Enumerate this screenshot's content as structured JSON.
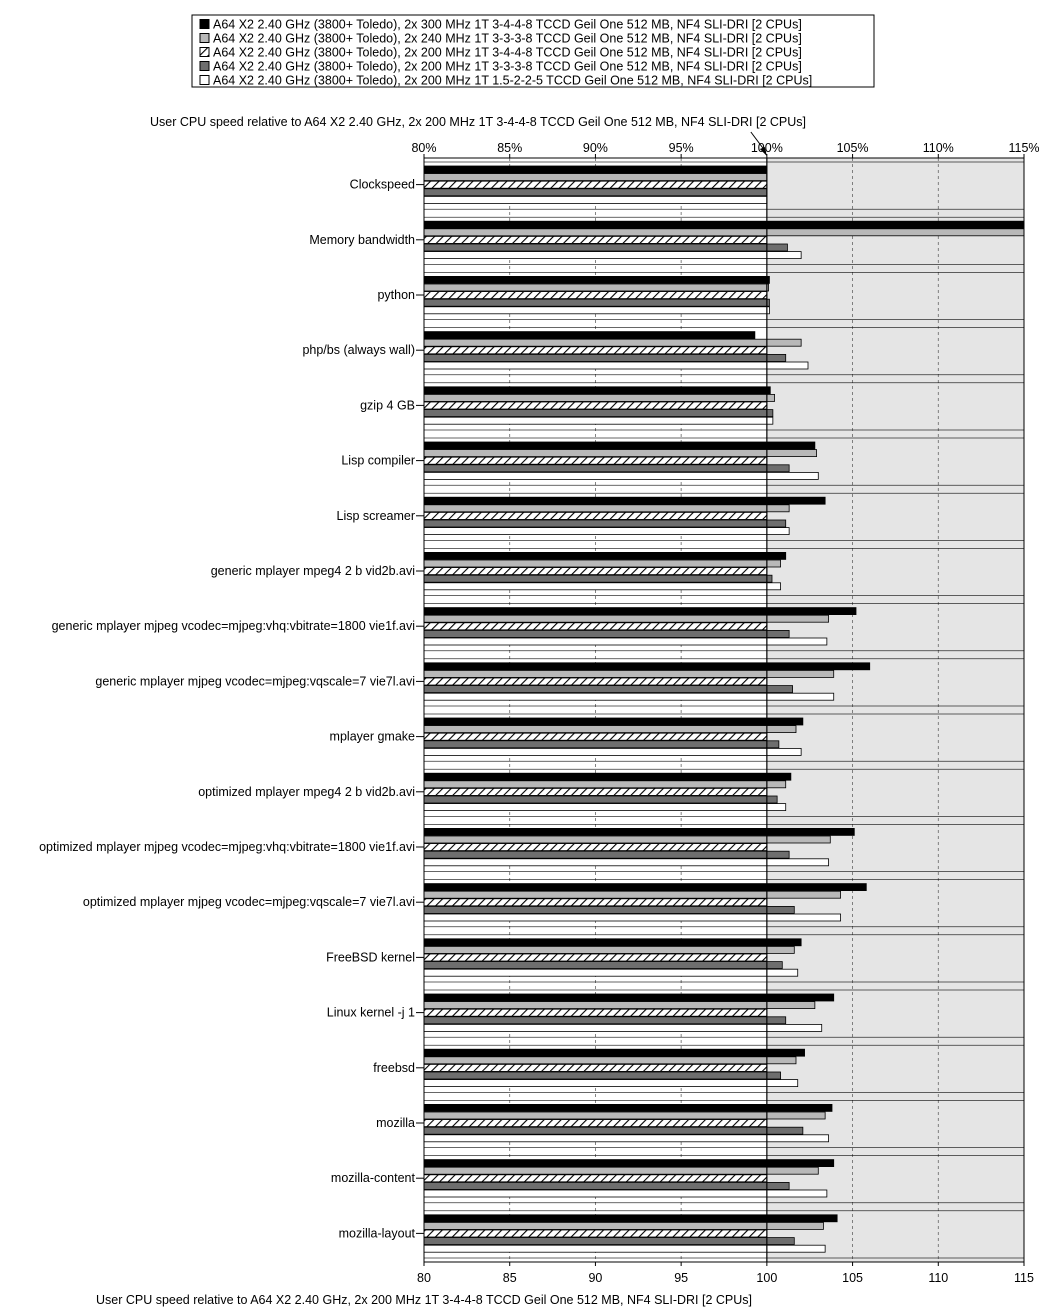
{
  "chart_data": {
    "type": "bar",
    "orientation": "horizontal",
    "title": "User CPU speed relative to A64 X2 2.40 GHz, 2x 200 MHz 1T 3-4-4-8 TCCD Geil One 512 MB, NF4 SLI-DRI [2 CPUs]",
    "xlabel": "User CPU speed relative to A64 X2 2.40 GHz, 2x 200 MHz 1T 3-4-4-8 TCCD Geil One 512 MB, NF4 SLI-DRI [2 CPUs]",
    "ylabel": "",
    "xlim": [
      80,
      115
    ],
    "baseline": 100,
    "top_ticks": [
      "80%",
      "85%",
      "90%",
      "95%",
      "100%",
      "105%",
      "110%",
      "115%"
    ],
    "bottom_ticks": [
      "80",
      "85",
      "90",
      "95",
      "100",
      "105",
      "110",
      "115"
    ],
    "grid": "vertical dashed",
    "legend_position": "top",
    "categories": [
      "Clockspeed",
      "Memory bandwidth",
      "python",
      "php/bs (always wall)",
      "gzip 4 GB",
      "Lisp compiler",
      "Lisp screamer",
      "generic mplayer mpeg4 2 b vid2b.avi",
      "generic mplayer mjpeg vcodec=mjpeg:vhq:vbitrate=1800 vie1f.avi",
      "generic mplayer mjpeg vcodec=mjpeg:vqscale=7 vie7l.avi",
      "mplayer gmake",
      "optimized mplayer mpeg4 2 b vid2b.avi",
      "optimized mplayer mjpeg vcodec=mjpeg:vhq:vbitrate=1800 vie1f.avi",
      "optimized mplayer mjpeg vcodec=mjpeg:vqscale=7 vie7l.avi",
      "FreeBSD kernel",
      "Linux kernel -j 1",
      "freebsd",
      "mozilla",
      "mozilla-content",
      "mozilla-layout"
    ],
    "series": [
      {
        "name": "A64 X2 2.40 GHz (3800+ Toledo), 2x 300 MHz 1T 3-4-4-8 TCCD Geil One 512 MB, NF4 SLI-DRI [2 CPUs]",
        "style": "black",
        "values": [
          100,
          115.1,
          100.15,
          99.3,
          100.2,
          102.8,
          103.4,
          101.1,
          105.2,
          106.0,
          102.1,
          101.4,
          105.1,
          105.8,
          102.0,
          103.9,
          102.2,
          103.8,
          103.9,
          104.1
        ]
      },
      {
        "name": "A64 X2 2.40 GHz (3800+ Toledo), 2x 240 MHz 1T 3-3-3-8 TCCD Geil One 512 MB, NF4 SLI-DRI [2 CPUs]",
        "style": "light-gray",
        "values": [
          100,
          115.0,
          100.1,
          102.0,
          100.45,
          102.9,
          101.3,
          100.8,
          103.6,
          103.9,
          101.7,
          101.1,
          103.7,
          104.3,
          101.6,
          102.8,
          101.7,
          103.4,
          103.0,
          103.3
        ]
      },
      {
        "name": "A64 X2 2.40 GHz (3800+ Toledo), 2x 200 MHz 1T 3-4-4-8 TCCD Geil One 512 MB, NF4 SLI-DRI [2 CPUs]",
        "style": "hatched",
        "values": [
          100,
          100,
          100,
          100,
          100,
          100,
          100,
          100,
          100,
          100,
          100,
          100,
          100,
          100,
          100,
          100,
          100,
          100,
          100,
          100
        ]
      },
      {
        "name": "A64 X2 2.40 GHz (3800+ Toledo), 2x 200 MHz 1T 3-3-3-8 TCCD Geil One 512 MB, NF4 SLI-DRI [2 CPUs]",
        "style": "dark-gray",
        "values": [
          100,
          101.2,
          100.15,
          101.1,
          100.35,
          101.3,
          101.1,
          100.3,
          101.3,
          101.5,
          100.7,
          100.6,
          101.3,
          101.6,
          100.9,
          101.1,
          100.8,
          102.1,
          101.3,
          101.6
        ]
      },
      {
        "name": "A64 X2 2.40 GHz (3800+ Toledo), 2x 200 MHz 1T 1.5-2-2-5 TCCD Geil One 512 MB, NF4 SLI-DRI [2 CPUs]",
        "style": "white",
        "values": [
          100,
          102.0,
          100.15,
          102.4,
          100.35,
          103.0,
          101.3,
          100.8,
          103.5,
          103.9,
          102.0,
          101.1,
          103.6,
          104.3,
          101.8,
          103.2,
          101.8,
          103.6,
          103.5,
          103.4
        ]
      }
    ]
  }
}
